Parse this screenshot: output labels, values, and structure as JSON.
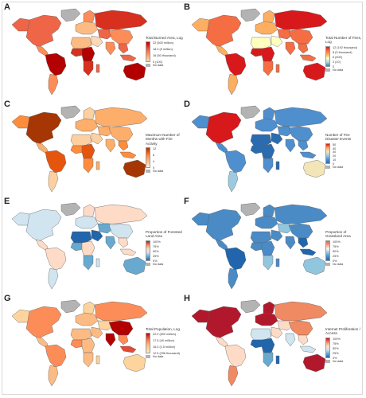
{
  "colors": {
    "ocean": "#ffffff",
    "no_data": "#b3b3b3",
    "border": "#5a5a5a"
  },
  "panels": [
    {
      "letter": "A",
      "legend_title": "Total Burned Area, Log",
      "ticks": [
        "22 (500 million)",
        "18.3 (5 million)",
        "16 (50 thousand)",
        "0 (100)"
      ],
      "no_data_label": "No data",
      "palette": [
        "#fdd9b5",
        "#fdbb84",
        "#fc8d59",
        "#ef6548",
        "#d7301f",
        "#b30000"
      ],
      "scale": "sequential-orange-red",
      "regions": {
        "north_america": 3,
        "alaska": 3,
        "greenland": -1,
        "central_america": 2,
        "south_america_north": 5,
        "south_america_south": 2,
        "europe": 1,
        "scandinavia": 2,
        "russia": 4,
        "middle_east": 0,
        "central_asia": 3,
        "china": 2,
        "india": 2,
        "southeast_asia": 3,
        "north_africa": 1,
        "west_africa": 4,
        "central_africa": 5,
        "southern_africa": 4,
        "madagascar": 3,
        "australia": 5,
        "indonesia": 3
      }
    },
    {
      "letter": "B",
      "legend_title": "Total Number of Fires, Log",
      "ticks": [
        "12 (192 thousand)",
        "8 (3 thousand)",
        "6 (400)",
        "2 (10)",
        "0"
      ],
      "no_data_label": "No data",
      "palette": [
        "#2c7bb6",
        "#abd9e9",
        "#ffffbf",
        "#fdae61",
        "#f46d43",
        "#d7191c"
      ],
      "scale": "diverging-blue-red",
      "regions": {
        "north_america": 4,
        "alaska": 3,
        "greenland": -1,
        "central_america": 3,
        "south_america_north": 5,
        "south_america_south": 3,
        "europe": 3,
        "scandinavia": 3,
        "russia": 5,
        "middle_east": 2,
        "central_asia": 4,
        "china": 4,
        "india": 4,
        "southeast_asia": 4,
        "north_africa": 2,
        "west_africa": 5,
        "central_africa": 5,
        "southern_africa": 4,
        "madagascar": 4,
        "australia": 5,
        "indonesia": 4
      }
    },
    {
      "letter": "C",
      "legend_title": "Maximum Number of Months with Fire Activity",
      "ticks": [
        "12",
        "8",
        "4",
        "0"
      ],
      "no_data_label": "No data",
      "palette": [
        "#fff5eb",
        "#fdd0a2",
        "#fdae6b",
        "#fd8d3c",
        "#e6550d",
        "#a63603"
      ],
      "scale": "sequential-orange",
      "regions": {
        "north_america": 5,
        "alaska": 3,
        "greenland": -1,
        "central_america": 2,
        "south_america_north": 4,
        "south_america_south": 1,
        "europe": 2,
        "scandinavia": 1,
        "russia": 2,
        "middle_east": 1,
        "central_asia": 2,
        "china": 2,
        "india": 2,
        "southeast_asia": 3,
        "north_africa": 1,
        "west_africa": 3,
        "central_africa": 4,
        "southern_africa": 3,
        "madagascar": 2,
        "australia": 5,
        "indonesia": 3
      }
    },
    {
      "letter": "D",
      "legend_title": "Number of Fire Disaster Events",
      "ticks": [
        "50",
        "40",
        "30",
        "20",
        "10",
        "0"
      ],
      "no_data_label": "No data",
      "palette": [
        "#2b6cb0",
        "#4f8fce",
        "#9ecae1",
        "#f2e6b8",
        "#fdae61",
        "#d7191c"
      ],
      "scale": "diverging-blue-red",
      "regions": {
        "north_america": 5,
        "alaska": 1,
        "greenland": -1,
        "central_america": 1,
        "south_america_north": 1,
        "south_america_south": 2,
        "europe": 1,
        "scandinavia": 1,
        "russia": 1,
        "middle_east": 0,
        "central_asia": 1,
        "china": 1,
        "india": 1,
        "southeast_asia": 1,
        "north_africa": 0,
        "west_africa": 0,
        "central_africa": 0,
        "southern_africa": 1,
        "madagascar": 0,
        "australia": 3,
        "indonesia": 1
      }
    },
    {
      "letter": "E",
      "legend_title": "Proportion of Forested Land Area",
      "ticks": [
        "100%",
        "75%",
        "50%",
        "25%",
        "0%"
      ],
      "no_data_label": "No data",
      "palette": [
        "#2166ac",
        "#67a9cf",
        "#d1e5f0",
        "#fddbc7",
        "#ef8a62",
        "#b2182b"
      ],
      "scale": "diverging-blue-red",
      "regions": {
        "north_america": 2,
        "alaska": 2,
        "greenland": -1,
        "central_america": 3,
        "south_america_north": 3,
        "south_america_south": 2,
        "europe": 2,
        "scandinavia": 3,
        "russia": 3,
        "middle_east": 0,
        "central_asia": 1,
        "china": 2,
        "india": 1,
        "southeast_asia": 3,
        "north_africa": 0,
        "west_africa": 1,
        "central_africa": 3,
        "southern_africa": 1,
        "madagascar": 2,
        "australia": 1,
        "indonesia": 3
      }
    },
    {
      "letter": "F",
      "legend_title": "Proportion of Grassland Area",
      "ticks": [
        "100%",
        "75%",
        "50%",
        "25%",
        "0%"
      ],
      "no_data_label": "No data",
      "palette": [
        "#2166ac",
        "#4a8bc6",
        "#92c5de",
        "#f7f7f7",
        "#f4a582",
        "#d6604d"
      ],
      "scale": "diverging-blue-red",
      "regions": {
        "north_america": 1,
        "alaska": 1,
        "greenland": -1,
        "central_america": 1,
        "south_america_north": 0,
        "south_america_south": 1,
        "europe": 1,
        "scandinavia": 1,
        "russia": 1,
        "middle_east": 1,
        "central_asia": 2,
        "china": 1,
        "india": 1,
        "southeast_asia": 0,
        "north_africa": 1,
        "west_africa": 1,
        "central_africa": 1,
        "southern_africa": 2,
        "madagascar": 1,
        "australia": 2,
        "indonesia": 0
      }
    },
    {
      "letter": "G",
      "legend_title": "Total Population, Log",
      "ticks": [
        "22.0 (500 million)",
        "17.5 (40 million)",
        "16.0 (1.5 million)",
        "12.5 (296 thousand)"
      ],
      "no_data_label": "No data",
      "palette": [
        "#fee8c8",
        "#fdd49e",
        "#fdbb84",
        "#fc8d59",
        "#e34a33",
        "#b30000"
      ],
      "scale": "sequential-orange-red",
      "regions": {
        "north_america": 3,
        "alaska": 1,
        "greenland": -1,
        "central_america": 2,
        "south_america_north": 3,
        "south_america_south": 2,
        "europe": 2,
        "scandinavia": 1,
        "russia": 3,
        "middle_east": 2,
        "central_asia": 1,
        "china": 5,
        "india": 5,
        "southeast_asia": 3,
        "north_africa": 2,
        "west_africa": 3,
        "central_africa": 2,
        "southern_africa": 2,
        "madagascar": 1,
        "australia": 1,
        "indonesia": 4
      }
    },
    {
      "letter": "H",
      "legend_title": "Internet Proliferation / Access",
      "ticks": [
        "100%",
        "75%",
        "50%",
        "25%",
        "0%"
      ],
      "no_data_label": "No data",
      "palette": [
        "#2166ac",
        "#67a9cf",
        "#d1e5f0",
        "#fddbc7",
        "#ef8a62",
        "#b2182b"
      ],
      "scale": "diverging-blue-red",
      "regions": {
        "north_america": 5,
        "alaska": 5,
        "greenland": -1,
        "central_america": 3,
        "south_america_north": 3,
        "south_america_south": 4,
        "europe": 5,
        "scandinavia": 5,
        "russia": 4,
        "middle_east": 3,
        "central_asia": 3,
        "china": 4,
        "india": 2,
        "southeast_asia": 3,
        "north_africa": 2,
        "west_africa": 0,
        "central_africa": 0,
        "southern_africa": 1,
        "madagascar": 0,
        "australia": 5,
        "indonesia": 2
      }
    }
  ]
}
